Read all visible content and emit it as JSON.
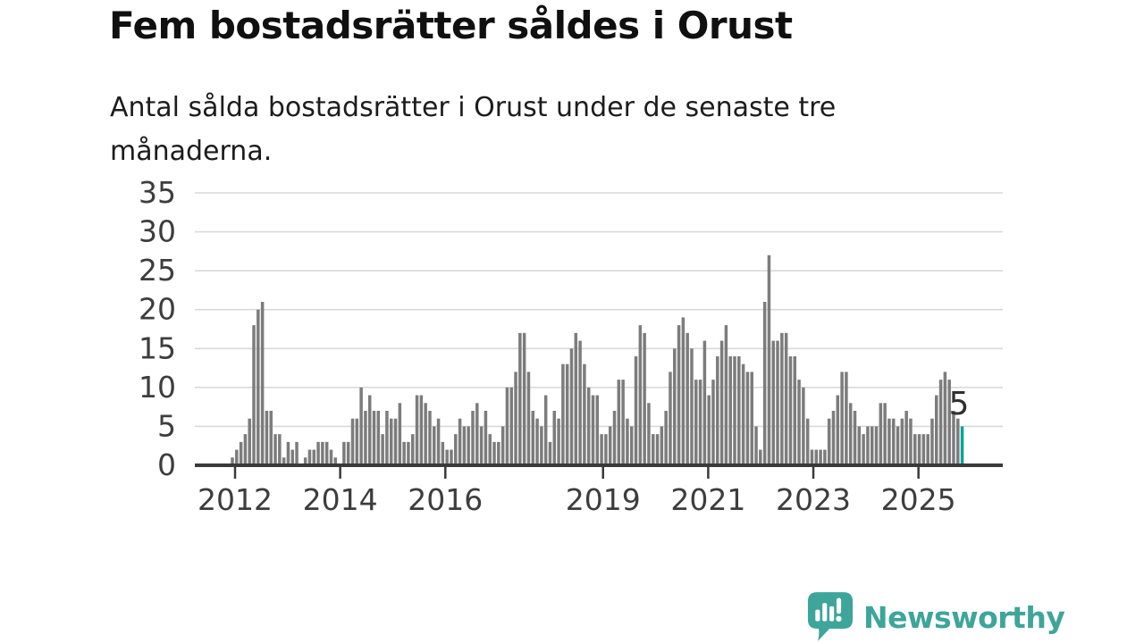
{
  "header": {
    "title": "Fem bostadsrätter såldes i Orust",
    "subtitle": "Antal sålda bostadsrätter i Orust under de senaste tre månaderna."
  },
  "chart_data": {
    "type": "bar",
    "title": "Fem bostadsrätter såldes i Orust",
    "ylabel": "",
    "xlabel": "",
    "x_unit": "month",
    "period": "2012–2025",
    "ylim": [
      0,
      35
    ],
    "y_ticks": [
      0,
      5,
      10,
      15,
      20,
      25,
      30,
      35
    ],
    "x_year_ticks": [
      2012,
      2014,
      2016,
      2019,
      2021,
      2023,
      2025
    ],
    "grid": true,
    "legend": "none",
    "values": [
      1,
      2,
      3,
      4,
      6,
      18,
      20,
      21,
      7,
      7,
      4,
      4,
      1,
      3,
      2,
      3,
      0,
      1,
      2,
      2,
      3,
      3,
      3,
      2,
      1,
      0,
      3,
      3,
      6,
      6,
      10,
      7,
      9,
      7,
      7,
      4,
      7,
      6,
      6,
      8,
      3,
      3,
      4,
      9,
      9,
      8,
      7,
      5,
      6,
      3,
      2,
      2,
      4,
      6,
      5,
      5,
      7,
      8,
      5,
      7,
      4,
      3,
      3,
      5,
      10,
      10,
      12,
      17,
      17,
      12,
      7,
      6,
      5,
      9,
      3,
      7,
      6,
      13,
      13,
      15,
      17,
      16,
      13,
      10,
      9,
      9,
      4,
      4,
      5,
      7,
      11,
      11,
      6,
      5,
      14,
      18,
      17,
      8,
      4,
      4,
      5,
      7,
      12,
      15,
      18,
      19,
      17,
      15,
      11,
      11,
      16,
      9,
      11,
      14,
      16,
      18,
      14,
      14,
      14,
      13,
      12,
      12,
      5,
      2,
      21,
      27,
      16,
      16,
      17,
      17,
      14,
      14,
      11,
      10,
      6,
      2,
      2,
      2,
      2,
      6,
      7,
      9,
      12,
      12,
      8,
      7,
      5,
      4,
      5,
      5,
      5,
      8,
      8,
      6,
      6,
      5,
      6,
      7,
      6,
      4,
      4,
      4,
      4,
      6,
      9,
      11,
      12,
      11,
      7,
      6,
      5
    ],
    "highlight_last_bar": true,
    "last_value_label": "5",
    "colors": {
      "bar": "#7c7c7c",
      "highlight": "#00a49c",
      "grid": "#d9d9d9",
      "axis": "#3a3a3a",
      "tick_label": "#3d3d3d",
      "annotation": "#2f2f2f"
    }
  },
  "footer": {
    "brand": "Newsworthy",
    "brand_color": "#3ea59a",
    "logo_icon": "bar-chart-speech-bubble"
  }
}
